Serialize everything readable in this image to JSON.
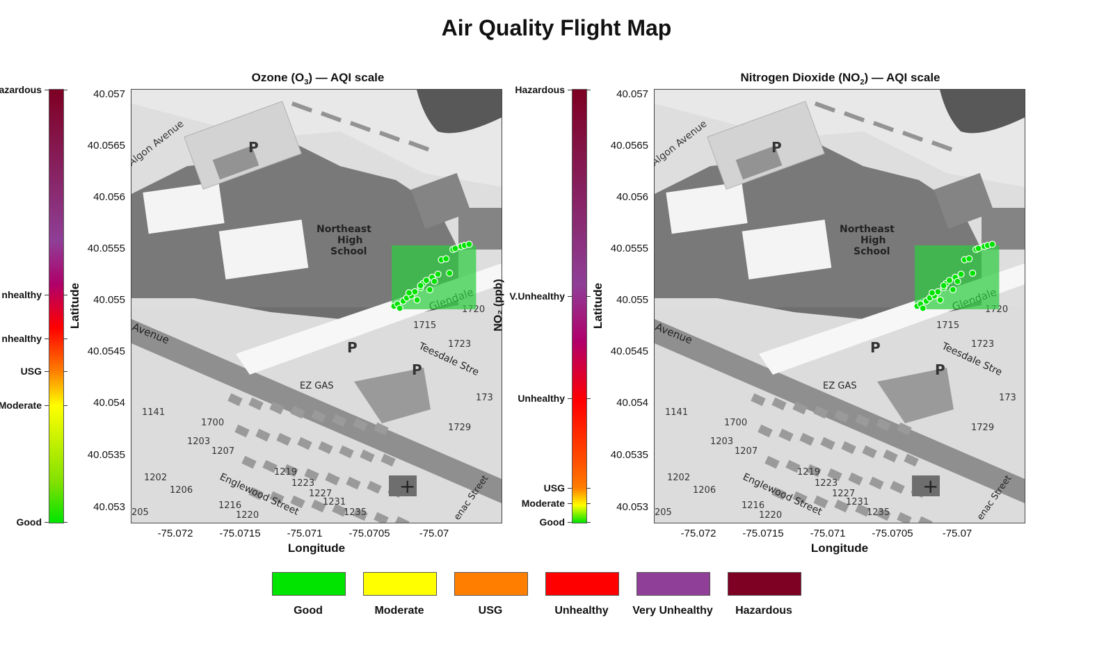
{
  "title": "Air Quality Flight Map",
  "colors": {
    "good": "#00e400",
    "moderate": "#ffff00",
    "usg": "#ff7e00",
    "unhealthy": "#ff0000",
    "very_unhealthy": "#8f3f97",
    "hazardous": "#7e0023",
    "highlight": "#2ecc40"
  },
  "panels": [
    {
      "title_prefix": "Ozone (O",
      "title_sub": "3",
      "title_suffix": ") — AQI scale",
      "colorbar_labels": [
        "Hazardous",
        "V.Unhealthy",
        "Unhealthy",
        "USG",
        "Moderate",
        "Good"
      ],
      "colorbar_label_visible": [
        "azardous",
        "nhealthy",
        "nhealthy",
        "USG",
        "Moderate",
        "Good"
      ]
    },
    {
      "title_prefix": "Nitrogen Dioxide (NO",
      "title_sub": "2",
      "title_suffix": ") — AQI scale",
      "colorbar_labels": [
        "Hazardous",
        "V.Unhealthy",
        "Unhealthy",
        "USG",
        "Moderate",
        "Good"
      ],
      "colorbar_title": "NO₂ (ppb)"
    }
  ],
  "axes": {
    "xlabel": "Longitude",
    "ylabel": "Latitude",
    "x_ticks": [
      "-75.072",
      "-75.0715",
      "-75.071",
      "-75.0705",
      "-75.07"
    ],
    "y_ticks": [
      "40.057",
      "40.0565",
      "40.056",
      "40.0555",
      "40.055",
      "40.0545",
      "40.054",
      "40.0535",
      "40.053"
    ]
  },
  "map_labels": {
    "school_1": "Northeast",
    "school_2": "High",
    "school_3": "School",
    "algon": "Algon Avenue",
    "glendale": "Glendale",
    "avenue": "Avenue",
    "teesdale": "Teesdale Stre",
    "englewood": "Englewood Street",
    "ezgas": "EZ GAS",
    "parking": "P",
    "n1720": "1720",
    "n1715": "1715",
    "n1723": "1723",
    "n1729": "1729",
    "n1141": "1141",
    "n1700": "1700",
    "n1203": "1203",
    "n1207": "1207",
    "n1219": "1219",
    "n1223": "1223",
    "n1227": "1227",
    "n1231": "1231",
    "n1202": "1202",
    "n1206": "1206",
    "n1216": "1216",
    "n1220": "1220",
    "n1235": "1235",
    "n205": "205",
    "n1730": "173",
    "enac": "enac Street"
  },
  "legend": [
    {
      "label": "Good",
      "color": "#00e400"
    },
    {
      "label": "Moderate",
      "color": "#ffff00"
    },
    {
      "label": "USG",
      "color": "#ff7e00"
    },
    {
      "label": "Unhealthy",
      "color": "#ff0000"
    },
    {
      "label": "Very Unhealthy",
      "color": "#8f3f97"
    },
    {
      "label": "Hazardous",
      "color": "#7e0023"
    }
  ],
  "chart_data": {
    "type": "scatter",
    "xlabel": "Longitude",
    "ylabel": "Latitude",
    "xlim": [
      -75.0725,
      -75.0693
    ],
    "ylim": [
      40.0529,
      40.0571
    ],
    "highlight_region": {
      "lon": [
        -75.07025,
        -75.06952
      ],
      "lat": [
        40.05497,
        40.05559
      ]
    },
    "series": [
      {
        "x": [
          -75.07023,
          -75.0702,
          -75.07015,
          -75.07012,
          -75.07008,
          -75.07005,
          -75.07,
          -75.06998,
          -75.06995,
          -75.0699,
          -75.06985,
          -75.06982,
          -75.06978,
          -75.06972,
          -75.0697,
          -75.06965,
          -75.06962,
          -75.06958,
          -75.07018,
          -75.07003,
          -75.06992,
          -75.0701,
          -75.07,
          -75.06988,
          -75.06975
        ],
        "y": [
          40.055,
          40.05502,
          40.05505,
          40.05508,
          40.0551,
          40.05514,
          40.05518,
          40.05522,
          40.05525,
          40.05528,
          40.05531,
          40.05545,
          40.05546,
          40.05555,
          40.05556,
          40.05558,
          40.05559,
          40.0556,
          40.05498,
          40.05506,
          40.05516,
          40.05513,
          40.0552,
          40.05524,
          40.05532
        ]
      },
      {
        "x": [
          -75.07023,
          -75.0702,
          -75.07015,
          -75.07012,
          -75.07008,
          -75.07005,
          -75.07,
          -75.06998,
          -75.06995,
          -75.0699,
          -75.06985,
          -75.06982,
          -75.06978,
          -75.06972,
          -75.0697,
          -75.06965,
          -75.06962,
          -75.06958,
          -75.07018,
          -75.07003,
          -75.06992,
          -75.0701,
          -75.07,
          -75.06988,
          -75.06975
        ],
        "y": [
          40.055,
          40.05502,
          40.05505,
          40.05508,
          40.0551,
          40.05514,
          40.05518,
          40.05522,
          40.05525,
          40.05528,
          40.05531,
          40.05545,
          40.05546,
          40.05555,
          40.05556,
          40.05558,
          40.05559,
          40.0556,
          40.05498,
          40.05506,
          40.05516,
          40.05513,
          40.0552,
          40.05524,
          40.05532
        ]
      }
    ]
  }
}
